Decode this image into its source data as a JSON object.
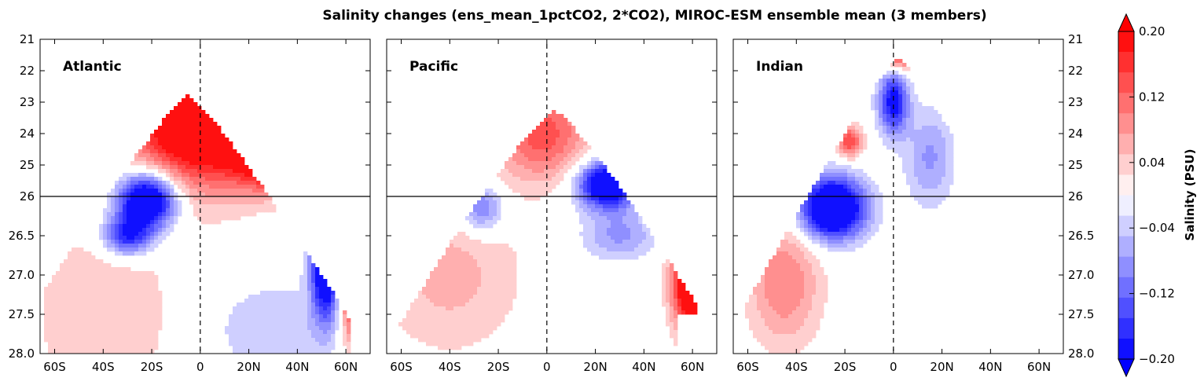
{
  "chart_data": {
    "type": "heatmap",
    "title": "Salinity changes (ens_mean_1pctCO2, 2*CO2), MIROC-ESM ensemble mean (3 members)",
    "x_tick_labels": [
      "60S",
      "40S",
      "20S",
      "0",
      "20N",
      "40N",
      "60N"
    ],
    "x_tick_values": [
      -60,
      -40,
      -20,
      0,
      20,
      40,
      60
    ],
    "xlim": [
      -66,
      70
    ],
    "y_upper_tick_labels": [
      "21",
      "22",
      "23",
      "24",
      "25",
      "26"
    ],
    "y_lower_tick_labels": [
      "26.5",
      "27.0",
      "27.5",
      "28.0"
    ],
    "y_split_value": 26,
    "panels": [
      {
        "name": "Atlantic"
      },
      {
        "name": "Pacific"
      },
      {
        "name": "Indian"
      }
    ],
    "colorbar": {
      "label": "Salinity (PSU)",
      "range": [
        -0.2,
        0.2
      ],
      "tick_labels": [
        "0.20",
        "0.12",
        "0.04",
        "−0.04",
        "−0.12",
        "−0.20"
      ],
      "tick_values": [
        0.2,
        0.12,
        0.04,
        -0.04,
        -0.12,
        -0.2
      ],
      "levels": 16,
      "extend": "both",
      "cmap": "bwr",
      "min_color": "#0000ff",
      "mid_color": "#ffffff",
      "max_color": "#ff0000"
    }
  }
}
